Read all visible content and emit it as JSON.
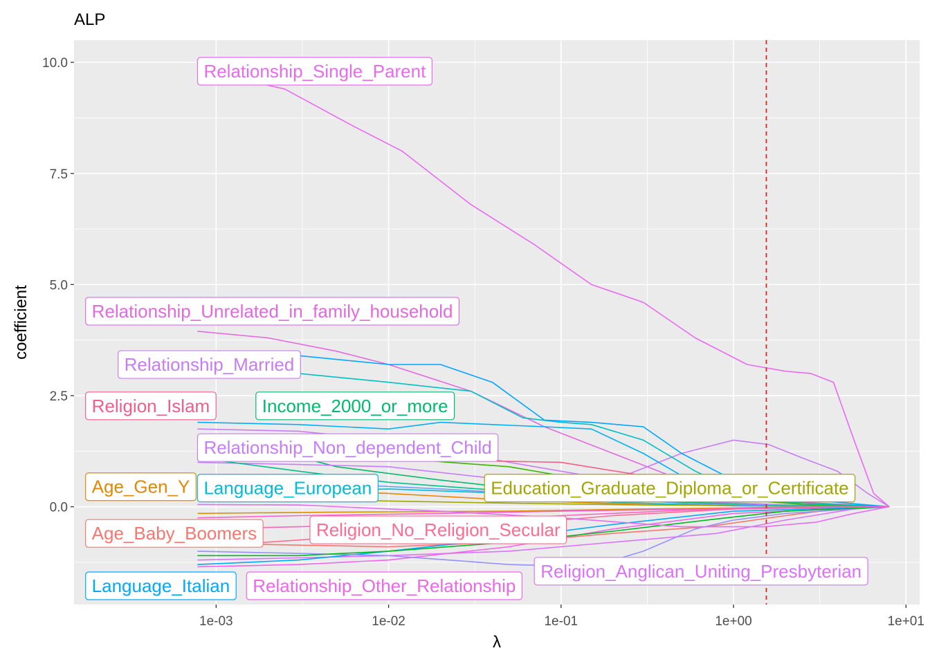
{
  "chart_data": {
    "type": "line",
    "title": "ALP",
    "xlabel": "λ",
    "ylabel": "coefficient",
    "x_scale": "log10",
    "xlim": [
      0.00015,
      12
    ],
    "ylim": [
      -2.2,
      10.5
    ],
    "x_ticks": [
      {
        "value": 0.001,
        "label": "1e-03"
      },
      {
        "value": 0.01,
        "label": "1e-02"
      },
      {
        "value": 0.1,
        "label": "1e-01"
      },
      {
        "value": 1,
        "label": "1e+00"
      },
      {
        "value": 10,
        "label": "1e+01"
      }
    ],
    "y_ticks": [
      {
        "value": 0,
        "label": "0.0"
      },
      {
        "value": 2.5,
        "label": "2.5"
      },
      {
        "value": 5,
        "label": "5.0"
      },
      {
        "value": 7.5,
        "label": "7.5"
      },
      {
        "value": 10,
        "label": "10.0"
      }
    ],
    "grid": true,
    "legend": "none",
    "vline": {
      "x": 1.55,
      "color": "#d62728",
      "style": "dashed"
    },
    "series": [
      {
        "name": "Relationship_Single_Parent",
        "color": "#E96AF0",
        "points": [
          [
            0.00085,
            9.8
          ],
          [
            0.0025,
            9.4
          ],
          [
            0.006,
            8.6
          ],
          [
            0.012,
            8.0
          ],
          [
            0.03,
            6.8
          ],
          [
            0.07,
            5.9
          ],
          [
            0.15,
            5.0
          ],
          [
            0.3,
            4.6
          ],
          [
            0.6,
            3.8
          ],
          [
            1.2,
            3.2
          ],
          [
            2.0,
            3.05
          ],
          [
            2.8,
            3.0
          ],
          [
            3.8,
            2.8
          ],
          [
            5.0,
            1.5
          ],
          [
            6.5,
            0.3
          ],
          [
            8.0,
            0.0
          ]
        ]
      },
      {
        "name": "Relationship_Unrelated_in_family_household",
        "color": "#E468E0",
        "points": [
          [
            0.00078,
            3.95
          ],
          [
            0.002,
            3.8
          ],
          [
            0.005,
            3.5
          ],
          [
            0.01,
            3.2
          ],
          [
            0.03,
            2.6
          ],
          [
            0.08,
            1.8
          ],
          [
            0.2,
            1.2
          ],
          [
            0.5,
            0.6
          ],
          [
            1.0,
            0.3
          ],
          [
            2.5,
            0.1
          ],
          [
            8.0,
            0.0
          ]
        ]
      },
      {
        "name": "Relationship_Married",
        "color": "#C87CF4",
        "points": [
          [
            0.00078,
            1.75
          ],
          [
            0.003,
            1.7
          ],
          [
            0.01,
            1.5
          ],
          [
            0.05,
            1.0
          ],
          [
            0.2,
            0.6
          ],
          [
            0.5,
            1.2
          ],
          [
            1.0,
            1.5
          ],
          [
            1.6,
            1.4
          ],
          [
            2.5,
            1.1
          ],
          [
            4.0,
            0.8
          ],
          [
            6.0,
            0.3
          ],
          [
            8.0,
            0.0
          ]
        ]
      },
      {
        "name": "Religion_Islam",
        "color": "#F25D8A",
        "points": [
          [
            0.00078,
            1.5
          ],
          [
            0.002,
            1.1
          ],
          [
            0.005,
            1.05
          ],
          [
            0.02,
            1.05
          ],
          [
            0.1,
            1.0
          ],
          [
            0.3,
            0.7
          ],
          [
            1.0,
            0.3
          ],
          [
            3.0,
            0.05
          ],
          [
            8.0,
            0.0
          ]
        ]
      },
      {
        "name": "Income_2000_or_more",
        "color": "#00BA6E",
        "points": [
          [
            0.00078,
            1.6
          ],
          [
            0.002,
            1.3
          ],
          [
            0.005,
            0.9
          ],
          [
            0.02,
            0.6
          ],
          [
            0.1,
            0.3
          ],
          [
            0.5,
            0.1
          ],
          [
            2.0,
            0.02
          ],
          [
            8.0,
            0.0
          ]
        ]
      },
      {
        "name": "Relationship_Non_dependent_Child",
        "color": "#C77CFF",
        "points": [
          [
            0.00078,
            1.0
          ],
          [
            0.003,
            0.95
          ],
          [
            0.01,
            0.9
          ],
          [
            0.05,
            0.6
          ],
          [
            0.2,
            0.3
          ],
          [
            0.8,
            0.1
          ],
          [
            3.0,
            0.02
          ],
          [
            8.0,
            0.0
          ]
        ]
      },
      {
        "name": "Age_Gen_Y",
        "color": "#E58700",
        "points": [
          [
            0.00078,
            0.45
          ],
          [
            0.002,
            0.4
          ],
          [
            0.01,
            0.3
          ],
          [
            0.05,
            0.15
          ],
          [
            0.3,
            0.05
          ],
          [
            2.0,
            0.01
          ],
          [
            8.0,
            0.0
          ]
        ]
      },
      {
        "name": "Language_European",
        "color": "#00BCD8",
        "points": [
          [
            0.00078,
            0.3
          ],
          [
            0.003,
            0.35
          ],
          [
            0.01,
            0.4
          ],
          [
            0.05,
            0.3
          ],
          [
            0.2,
            0.1
          ],
          [
            1.0,
            0.02
          ],
          [
            8.0,
            0.0
          ]
        ]
      },
      {
        "name": "Education_Graduate_Diploma_or_Certificate",
        "color": "#A3A500",
        "points": [
          [
            0.00078,
            0.2
          ],
          [
            0.005,
            0.15
          ],
          [
            0.05,
            0.08
          ],
          [
            0.3,
            0.04
          ],
          [
            1.5,
            0.02
          ],
          [
            3.0,
            0.01
          ],
          [
            8.0,
            0.0
          ]
        ]
      },
      {
        "name": "Age_Baby_Boomers",
        "color": "#F8766D",
        "points": [
          [
            0.00078,
            -0.8
          ],
          [
            0.002,
            -0.85
          ],
          [
            0.01,
            -0.9
          ],
          [
            0.05,
            -0.8
          ],
          [
            0.2,
            -0.6
          ],
          [
            0.7,
            -0.45
          ],
          [
            2.0,
            -0.2
          ],
          [
            4.0,
            -0.05
          ],
          [
            8.0,
            0.0
          ]
        ]
      },
      {
        "name": "Religion_No_Religion_Secular",
        "color": "#FF6C91",
        "points": [
          [
            0.00078,
            -0.9
          ],
          [
            0.003,
            -0.75
          ],
          [
            0.01,
            -0.6
          ],
          [
            0.05,
            -0.4
          ],
          [
            0.2,
            -0.2
          ],
          [
            1.0,
            -0.05
          ],
          [
            8.0,
            0.0
          ]
        ]
      },
      {
        "name": "Religion_Anglican_Uniting_Presbyterian",
        "color": "#DB72FB",
        "points": [
          [
            0.00078,
            -1.2
          ],
          [
            0.003,
            -1.15
          ],
          [
            0.01,
            -1.1
          ],
          [
            0.05,
            -1.0
          ],
          [
            0.2,
            -0.8
          ],
          [
            0.8,
            -0.6
          ],
          [
            2.0,
            -0.3
          ],
          [
            5.0,
            -0.05
          ],
          [
            8.0,
            0.0
          ]
        ]
      },
      {
        "name": "Language_Italian",
        "color": "#00A9FF",
        "points": [
          [
            0.00078,
            -1.3
          ],
          [
            0.003,
            -1.2
          ],
          [
            0.01,
            -1.0
          ],
          [
            0.05,
            -0.7
          ],
          [
            0.2,
            -0.4
          ],
          [
            1.0,
            -0.1
          ],
          [
            8.0,
            0.0
          ]
        ]
      },
      {
        "name": "Relationship_Other_Relationship",
        "color": "#F066EA",
        "points": [
          [
            0.00078,
            -1.35
          ],
          [
            0.003,
            -1.3
          ],
          [
            0.01,
            -1.2
          ],
          [
            0.05,
            -0.9
          ],
          [
            0.2,
            -0.5
          ],
          [
            1.0,
            -0.15
          ],
          [
            8.0,
            0.0
          ]
        ]
      },
      {
        "name": "",
        "color": "#00B0F6",
        "points": [
          [
            0.00078,
            1.9
          ],
          [
            0.003,
            1.85
          ],
          [
            0.01,
            1.75
          ],
          [
            0.02,
            1.9
          ],
          [
            0.04,
            1.85
          ],
          [
            0.08,
            1.8
          ],
          [
            0.15,
            1.75
          ],
          [
            0.3,
            1.2
          ],
          [
            0.5,
            0.7
          ],
          [
            1.0,
            0.3
          ],
          [
            2.5,
            0.05
          ],
          [
            8.0,
            0.0
          ]
        ]
      },
      {
        "name": "",
        "color": "#00BFC4",
        "points": [
          [
            0.00078,
            3.0
          ],
          [
            0.003,
            3.0
          ],
          [
            0.01,
            2.8
          ],
          [
            0.03,
            2.6
          ],
          [
            0.06,
            2.0
          ],
          [
            0.1,
            1.9
          ],
          [
            0.15,
            1.85
          ],
          [
            0.3,
            1.5
          ],
          [
            0.6,
            0.8
          ],
          [
            1.0,
            0.4
          ],
          [
            2.0,
            0.1
          ],
          [
            8.0,
            0.0
          ]
        ]
      },
      {
        "name": "",
        "color": "#00A5FF",
        "points": [
          [
            0.00078,
            3.5
          ],
          [
            0.003,
            3.4
          ],
          [
            0.01,
            3.2
          ],
          [
            0.02,
            3.2
          ],
          [
            0.04,
            2.8
          ],
          [
            0.08,
            1.95
          ],
          [
            0.15,
            1.9
          ],
          [
            0.3,
            1.8
          ],
          [
            0.5,
            1.2
          ],
          [
            1.0,
            0.6
          ],
          [
            2.0,
            0.2
          ],
          [
            8.0,
            0.0
          ]
        ]
      },
      {
        "name": "",
        "color": "#39B600",
        "points": [
          [
            0.00078,
            1.3
          ],
          [
            0.003,
            1.2
          ],
          [
            0.01,
            1.1
          ],
          [
            0.05,
            0.9
          ],
          [
            0.2,
            0.5
          ],
          [
            0.8,
            0.2
          ],
          [
            3.0,
            0.03
          ],
          [
            8.0,
            0.0
          ]
        ]
      },
      {
        "name": "",
        "color": "#00C08B",
        "points": [
          [
            0.00078,
            1.1
          ],
          [
            0.003,
            0.8
          ],
          [
            0.01,
            0.55
          ],
          [
            0.05,
            0.35
          ],
          [
            0.3,
            0.15
          ],
          [
            1.5,
            0.03
          ],
          [
            8.0,
            0.0
          ]
        ]
      },
      {
        "name": "",
        "color": "#619CFF",
        "points": [
          [
            0.00078,
            0.6
          ],
          [
            0.003,
            0.55
          ],
          [
            0.02,
            0.4
          ],
          [
            0.1,
            0.25
          ],
          [
            0.5,
            0.08
          ],
          [
            2.0,
            0.01
          ],
          [
            8.0,
            0.0
          ]
        ]
      },
      {
        "name": "",
        "color": "#9590FF",
        "points": [
          [
            0.00078,
            -1.0
          ],
          [
            0.003,
            -1.05
          ],
          [
            0.01,
            -1.1
          ],
          [
            0.05,
            -1.3
          ],
          [
            0.15,
            -1.35
          ],
          [
            0.3,
            -1.0
          ],
          [
            0.6,
            -0.5
          ],
          [
            1.0,
            -0.3
          ],
          [
            2.0,
            -0.15
          ],
          [
            8.0,
            0.0
          ]
        ]
      },
      {
        "name": "",
        "color": "#00B81F",
        "points": [
          [
            0.00078,
            -1.1
          ],
          [
            0.003,
            -1.1
          ],
          [
            0.01,
            -1.0
          ],
          [
            0.05,
            -0.8
          ],
          [
            0.2,
            -0.55
          ],
          [
            0.7,
            -0.3
          ],
          [
            2.0,
            -0.1
          ],
          [
            8.0,
            0.0
          ]
        ]
      },
      {
        "name": "",
        "color": "#FF62BC",
        "points": [
          [
            0.00078,
            -0.5
          ],
          [
            0.003,
            -0.45
          ],
          [
            0.02,
            -0.35
          ],
          [
            0.1,
            -0.2
          ],
          [
            0.5,
            -0.08
          ],
          [
            2.0,
            -0.02
          ],
          [
            8.0,
            0.0
          ]
        ]
      },
      {
        "name": "",
        "color": "#D89000",
        "points": [
          [
            0.00078,
            -0.15
          ],
          [
            0.005,
            -0.12
          ],
          [
            0.05,
            -0.1
          ],
          [
            0.3,
            -0.05
          ],
          [
            2.0,
            -0.01
          ],
          [
            8.0,
            0.0
          ]
        ]
      },
      {
        "name": "",
        "color": "#E76BF3",
        "points": [
          [
            0.00078,
            0.05
          ],
          [
            0.003,
            0.04
          ],
          [
            0.02,
            -0.1
          ],
          [
            0.1,
            -0.25
          ],
          [
            0.5,
            -0.45
          ],
          [
            1.5,
            -0.45
          ],
          [
            3.0,
            -0.35
          ],
          [
            5.0,
            -0.15
          ],
          [
            8.0,
            0.0
          ]
        ]
      },
      {
        "name": "",
        "color": "#FD61D1",
        "points": [
          [
            0.00078,
            -0.25
          ],
          [
            0.003,
            -0.2
          ],
          [
            0.02,
            -0.15
          ],
          [
            0.1,
            -0.1
          ],
          [
            0.6,
            -0.05
          ],
          [
            3.0,
            -0.01
          ],
          [
            8.0,
            0.0
          ]
        ]
      }
    ],
    "labels": [
      {
        "text": "Relationship_Single_Parent",
        "color": "#E96AF0",
        "x": 0.00078,
        "y": 9.8
      },
      {
        "text": "Relationship_Unrelated_in_family_household",
        "color": "#E468E0",
        "x": 0.000175,
        "y": 4.4
      },
      {
        "text": "Relationship_Married",
        "color": "#C87CF4",
        "x": 0.00027,
        "y": 3.2
      },
      {
        "text": "Religion_Islam",
        "color": "#F25D8A",
        "x": 0.000175,
        "y": 2.27
      },
      {
        "text": "Income_2000_or_more",
        "color": "#00BA6E",
        "x": 0.0017,
        "y": 2.27
      },
      {
        "text": "Relationship_Non_dependent_Child",
        "color": "#C77CFF",
        "x": 0.00078,
        "y": 1.33
      },
      {
        "text": "Age_Gen_Y",
        "color": "#E58700",
        "x": 0.000175,
        "y": 0.45
      },
      {
        "text": "Language_European",
        "color": "#00BCD8",
        "x": 0.00078,
        "y": 0.42
      },
      {
        "text": "Education_Graduate_Diploma_or_Certificate",
        "color": "#A3A500",
        "x": 0.036,
        "y": 0.42
      },
      {
        "text": "Age_Baby_Boomers",
        "color": "#F8766D",
        "x": 0.000175,
        "y": -0.6
      },
      {
        "text": "Religion_No_Religion_Secular",
        "color": "#FF6C91",
        "x": 0.0035,
        "y": -0.52
      },
      {
        "text": "Religion_Anglican_Uniting_Presbyterian",
        "color": "#DB72FB",
        "x": 0.07,
        "y": -1.45
      },
      {
        "text": "Language_Italian",
        "color": "#00A9FF",
        "x": 0.000175,
        "y": -1.78
      },
      {
        "text": "Relationship_Other_Relationship",
        "color": "#F066EA",
        "x": 0.0015,
        "y": -1.78
      }
    ]
  }
}
